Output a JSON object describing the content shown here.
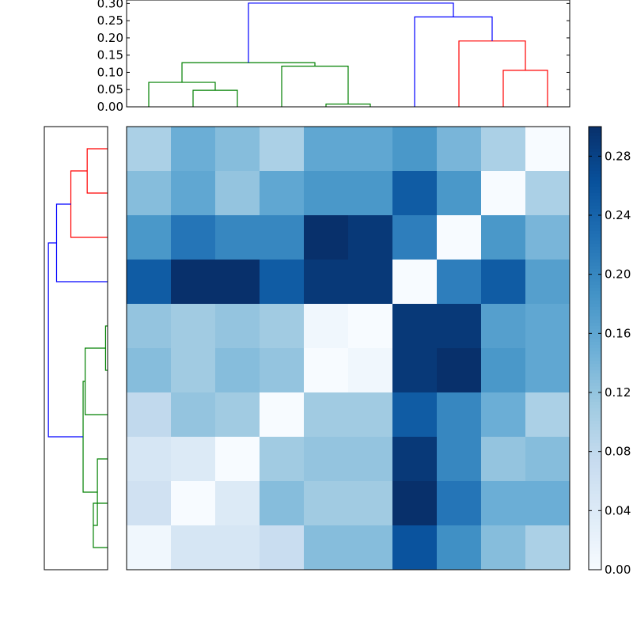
{
  "chart_data": [
    {
      "type": "heatmap",
      "colormap": "Blues",
      "matrix": [
        [
          0.1,
          0.15,
          0.13,
          0.1,
          0.16,
          0.16,
          0.18,
          0.14,
          0.1,
          0.0
        ],
        [
          0.13,
          0.16,
          0.12,
          0.16,
          0.18,
          0.18,
          0.25,
          0.18,
          0.0,
          0.1
        ],
        [
          0.18,
          0.22,
          0.2,
          0.2,
          0.3,
          0.29,
          0.21,
          0.0,
          0.18,
          0.14
        ],
        [
          0.25,
          0.3,
          0.3,
          0.25,
          0.29,
          0.29,
          0.0,
          0.21,
          0.25,
          0.17
        ],
        [
          0.12,
          0.11,
          0.12,
          0.11,
          0.01,
          0.0,
          0.29,
          0.29,
          0.17,
          0.16
        ],
        [
          0.13,
          0.11,
          0.13,
          0.12,
          0.0,
          0.01,
          0.29,
          0.3,
          0.18,
          0.16
        ],
        [
          0.08,
          0.12,
          0.11,
          0.0,
          0.11,
          0.11,
          0.25,
          0.2,
          0.15,
          0.1
        ],
        [
          0.05,
          0.04,
          0.0,
          0.11,
          0.12,
          0.12,
          0.29,
          0.2,
          0.12,
          0.13
        ],
        [
          0.06,
          0.0,
          0.04,
          0.13,
          0.11,
          0.11,
          0.3,
          0.22,
          0.15,
          0.15
        ],
        [
          0.01,
          0.05,
          0.05,
          0.07,
          0.13,
          0.13,
          0.26,
          0.19,
          0.13,
          0.1
        ]
      ],
      "vmin": 0.0,
      "vmax": 0.3
    },
    {
      "type": "colorbar",
      "ticks": [
        "0.00",
        "0.04",
        "0.08",
        "0.12",
        "0.16",
        "0.20",
        "0.24",
        "0.28"
      ],
      "tick_values": [
        0.0,
        0.04,
        0.08,
        0.12,
        0.16,
        0.2,
        0.24,
        0.28
      ],
      "range": [
        0.0,
        0.3
      ]
    },
    {
      "type": "dendrogram",
      "orientation": "top",
      "ylim": [
        0.0,
        0.31
      ],
      "yticks": [
        "0.00",
        "0.05",
        "0.10",
        "0.15",
        "0.20",
        "0.25",
        "0.30"
      ],
      "ytick_values": [
        0.0,
        0.05,
        0.1,
        0.15,
        0.2,
        0.25,
        0.3
      ],
      "links": [
        {
          "left": 1.5,
          "right": 2.5,
          "h": 0.048,
          "color": "green"
        },
        {
          "left": 0.5,
          "right": 2.0,
          "h": 0.071,
          "color": "green"
        },
        {
          "left": 4.5,
          "right": 5.5,
          "h": 0.008,
          "color": "green"
        },
        {
          "left": 3.5,
          "right": 5.0,
          "h": 0.118,
          "color": "green"
        },
        {
          "left": 1.25,
          "right": 4.25,
          "h": 0.128,
          "color": "green"
        },
        {
          "left": 8.5,
          "right": 9.5,
          "h": 0.106,
          "color": "red"
        },
        {
          "left": 7.5,
          "right": 9.0,
          "h": 0.191,
          "color": "red"
        },
        {
          "left": 6.5,
          "right": 8.25,
          "h": 0.261,
          "color": "blue"
        },
        {
          "left": 2.75,
          "right": 7.375,
          "h": 0.301,
          "color": "blue"
        }
      ]
    },
    {
      "type": "dendrogram",
      "orientation": "left",
      "hlim": [
        0.0,
        0.31
      ],
      "links": [
        {
          "top": 0.5,
          "bottom": 1.5,
          "h": 0.1,
          "color": "red"
        },
        {
          "top": 1.0,
          "bottom": 2.5,
          "h": 0.18,
          "color": "red"
        },
        {
          "top": 1.75,
          "bottom": 3.5,
          "h": 0.25,
          "color": "blue"
        },
        {
          "top": 4.5,
          "bottom": 5.5,
          "h": 0.01,
          "color": "green"
        },
        {
          "top": 5.0,
          "bottom": 6.5,
          "h": 0.11,
          "color": "green"
        },
        {
          "top": 8.5,
          "bottom": 9.5,
          "h": 0.07,
          "color": "green"
        },
        {
          "top": 7.5,
          "bottom": 9.0,
          "h": 0.05,
          "color": "green"
        },
        {
          "top": 8.25,
          "bottom": 5.75,
          "h": 0.12,
          "color": "green"
        },
        {
          "top": 2.625,
          "bottom": 7.0,
          "h": 0.29,
          "color": "blue"
        }
      ]
    }
  ]
}
